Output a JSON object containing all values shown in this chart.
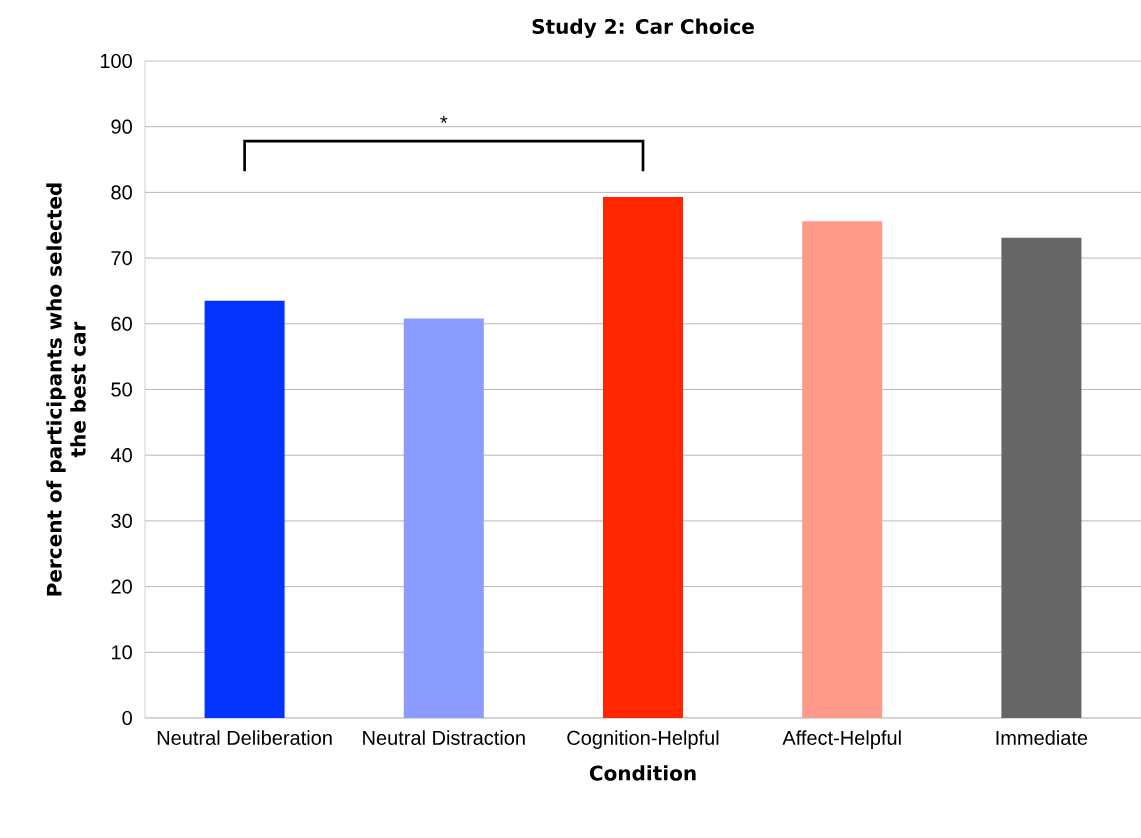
{
  "chart_data": {
    "type": "bar",
    "title": "Study 2: Car Choice",
    "xlabel": "Condition",
    "ylabel": "Percent of participants who selected the best car",
    "categories": [
      "Neutral Deliberation",
      "Neutral Distraction",
      "Cognition-Helpful",
      "Affect-Helpful",
      "Immediate"
    ],
    "values": [
      63.5,
      60.8,
      79.3,
      75.6,
      73.1
    ],
    "colors": [
      "#0433ff",
      "#8a9cff",
      "#ff2600",
      "#ff9a8a",
      "#666666"
    ],
    "ylim": [
      0,
      100
    ],
    "yticks": [
      0,
      10,
      20,
      30,
      40,
      50,
      60,
      70,
      80,
      90,
      100
    ],
    "grid": "y",
    "annotations": [
      "*"
    ]
  }
}
